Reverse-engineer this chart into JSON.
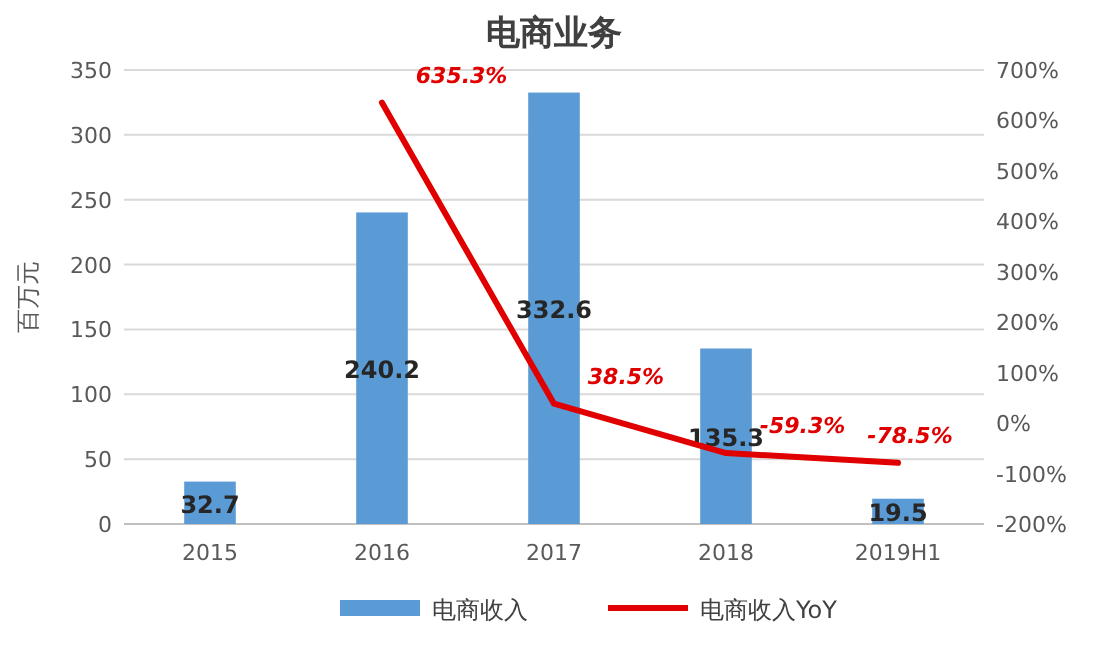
{
  "chart_data": {
    "type": "bar",
    "title": "电商业务",
    "ylabel": "百万元",
    "categories": [
      "2015",
      "2016",
      "2017",
      "2018",
      "2019H1"
    ],
    "series": [
      {
        "name": "电商收入",
        "color": "#5b9bd5",
        "values": [
          32.7,
          240.2,
          332.6,
          135.3,
          19.5
        ],
        "value_labels": [
          "32.7",
          "240.2",
          "332.6",
          "135.3",
          "19.5"
        ]
      },
      {
        "name": "电商收入YoY",
        "type": "line",
        "axis": "y2",
        "color": "#e00000",
        "values": [
          null,
          635.3,
          38.5,
          -59.3,
          -78.5
        ],
        "value_labels": [
          null,
          "635.3%",
          "38.5%",
          "-59.3%",
          "-78.5%"
        ]
      }
    ],
    "ylim": [
      0,
      350
    ],
    "yticks": [
      0,
      50,
      100,
      150,
      200,
      250,
      300,
      350
    ],
    "y2lim": [
      -200,
      700
    ],
    "y2ticks": [
      {
        "value": -200,
        "label": "-200%"
      },
      {
        "value": -100,
        "label": "-100%"
      },
      {
        "value": 0,
        "label": "0%"
      },
      {
        "value": 100,
        "label": "100%"
      },
      {
        "value": 200,
        "label": "200%"
      },
      {
        "value": 300,
        "label": "300%"
      },
      {
        "value": 400,
        "label": "400%"
      },
      {
        "value": 500,
        "label": "500%"
      },
      {
        "value": 600,
        "label": "600%"
      },
      {
        "value": 700,
        "label": "700%"
      }
    ],
    "grid": "y",
    "legend": "bottom",
    "line_style": "solid",
    "marker": "none"
  }
}
